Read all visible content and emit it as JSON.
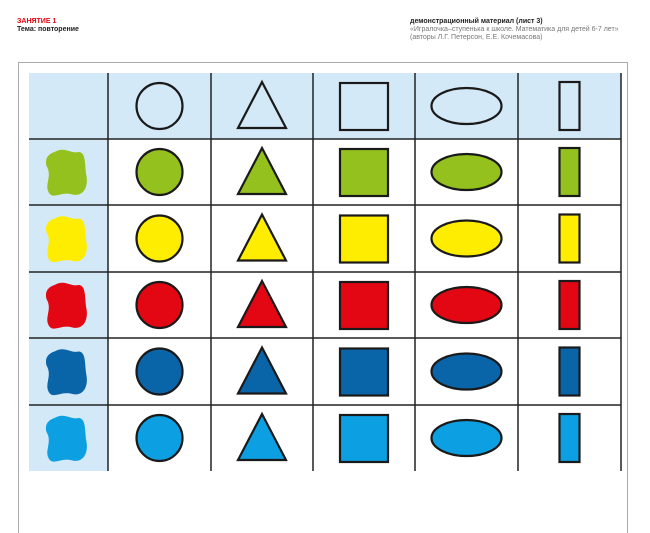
{
  "header": {
    "lesson": "ЗАНЯТИЕ  1",
    "topic": "Тема: повторение",
    "material": "демонстрационный материал (лист 3)",
    "book": "«Игралочка–ступенька к школе. Математика для детей 6-7 лет»",
    "authors": "(авторы Л.Г. Петерсон, Е.Е. Кочемасова)"
  },
  "table": {
    "shapes": [
      "circle",
      "triangle",
      "square",
      "ellipse",
      "rectangle"
    ],
    "rows": [
      {
        "color_name": "green",
        "color": "#95c11f"
      },
      {
        "color_name": "yellow",
        "color": "#ffed00"
      },
      {
        "color_name": "red",
        "color": "#e30613"
      },
      {
        "color_name": "dark-blue",
        "color": "#0a64a8"
      },
      {
        "color_name": "light-blue",
        "color": "#0ca0e3"
      }
    ],
    "header_bg": "#d3e9f8"
  }
}
